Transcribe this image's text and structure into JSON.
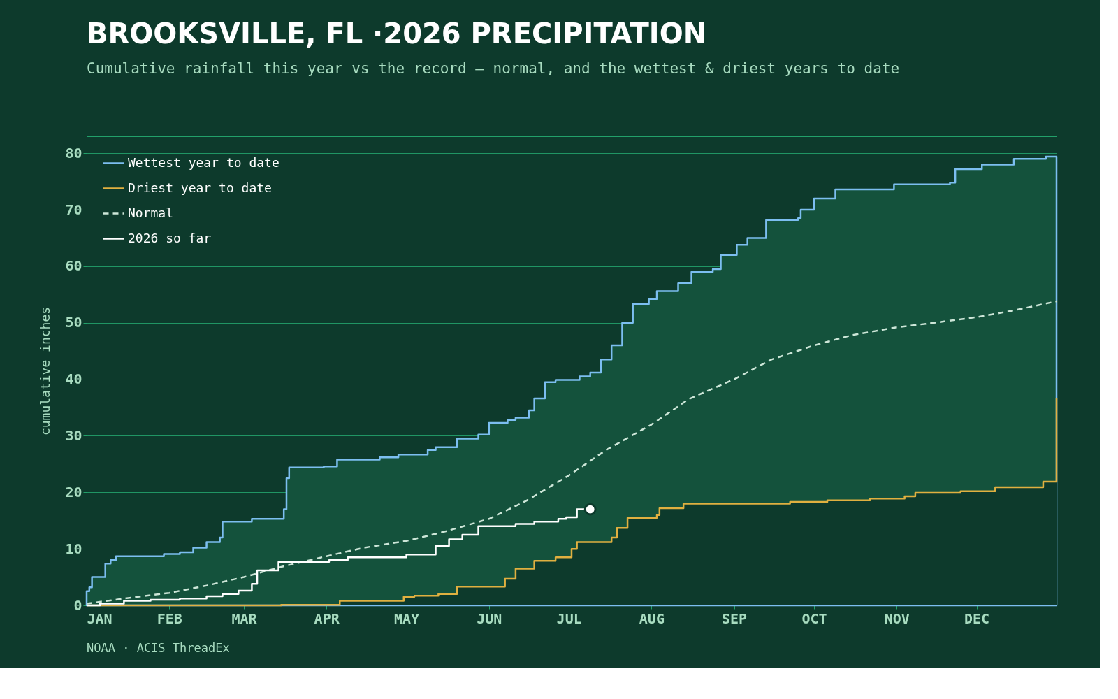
{
  "chart_data": {
    "type": "step",
    "title": "BROOKSVILLE, FL ·2026 PRECIPITATION",
    "subtitle": "Cumulative rainfall this year vs the record — normal, and the wettest & driest years to date",
    "ylabel": "cumulative inches",
    "annotations": [
      "NOAA · ACIS ThreadEx"
    ],
    "xlim": [
      "2026-01-01",
      "2026-12-31"
    ],
    "xticks": [
      {
        "value": "2026-01-01",
        "label": "JAN"
      },
      {
        "value": "2026-02-01",
        "label": "FEB"
      },
      {
        "value": "2026-03-01",
        "label": "MAR"
      },
      {
        "value": "2026-04-01",
        "label": "APR"
      },
      {
        "value": "2026-05-01",
        "label": "MAY"
      },
      {
        "value": "2026-06-01",
        "label": "JUN"
      },
      {
        "value": "2026-07-01",
        "label": "JUL"
      },
      {
        "value": "2026-08-01",
        "label": "AUG"
      },
      {
        "value": "2026-09-01",
        "label": "SEP"
      },
      {
        "value": "2026-10-01",
        "label": "OCT"
      },
      {
        "value": "2026-11-01",
        "label": "NOV"
      },
      {
        "value": "2026-12-01",
        "label": "DEC"
      }
    ],
    "ylim": [
      0,
      83
    ],
    "yticks": [
      0,
      10,
      20,
      30,
      40,
      50,
      60,
      70,
      80
    ],
    "grid": "y",
    "legend": "top left",
    "series": [
      {
        "name": "Wettest year to date",
        "color": "#7cbef0",
        "type": "area",
        "x": [
          "2026-01-01",
          "2026-01-02",
          "2026-01-03",
          "2026-01-08",
          "2026-01-10",
          "2026-01-12",
          "2026-01-30",
          "2026-02-05",
          "2026-02-10",
          "2026-02-15",
          "2026-02-20",
          "2026-02-21",
          "2026-03-04",
          "2026-03-16",
          "2026-03-17",
          "2026-03-18",
          "2026-03-31",
          "2026-04-05",
          "2026-04-21",
          "2026-04-28",
          "2026-05-09",
          "2026-05-12",
          "2026-05-20",
          "2026-05-28",
          "2026-06-01",
          "2026-06-08",
          "2026-06-11",
          "2026-06-16",
          "2026-06-18",
          "2026-06-22",
          "2026-06-26",
          "2026-07-05",
          "2026-07-09",
          "2026-07-13",
          "2026-07-17",
          "2026-07-21",
          "2026-07-25",
          "2026-07-31",
          "2026-08-03",
          "2026-08-11",
          "2026-08-16",
          "2026-08-24",
          "2026-08-27",
          "2026-09-02",
          "2026-09-06",
          "2026-09-13",
          "2026-09-25",
          "2026-09-26",
          "2026-10-01",
          "2026-10-09",
          "2026-10-31",
          "2026-11-21",
          "2026-11-23",
          "2026-12-03",
          "2026-12-15",
          "2026-12-27",
          "2026-12-31"
        ],
        "values": [
          2.5,
          3.2,
          5.0,
          7.4,
          8.0,
          8.7,
          9.1,
          9.4,
          10.2,
          11.2,
          12.0,
          14.8,
          15.3,
          17.0,
          22.5,
          24.4,
          24.6,
          25.8,
          26.2,
          26.7,
          27.5,
          28.0,
          29.5,
          30.2,
          32.3,
          32.8,
          33.2,
          34.5,
          36.6,
          39.5,
          39.9,
          40.5,
          41.2,
          43.5,
          46,
          50,
          53.3,
          54.2,
          55.6,
          57,
          59,
          59.5,
          62,
          63.8,
          65,
          68.2,
          68.5,
          70,
          72,
          73.6,
          74.5,
          74.8,
          77.2,
          78,
          79,
          79.4,
          79.4
        ]
      },
      {
        "name": "Driest year to date",
        "color": "#e0b040",
        "x": [
          "2026-01-01",
          "2026-03-15",
          "2026-04-06",
          "2026-04-30",
          "2026-05-04",
          "2026-05-13",
          "2026-05-20",
          "2026-06-07",
          "2026-06-11",
          "2026-06-18",
          "2026-06-26",
          "2026-07-02",
          "2026-07-04",
          "2026-07-17",
          "2026-07-19",
          "2026-07-23",
          "2026-08-03",
          "2026-08-04",
          "2026-08-13",
          "2026-09-22",
          "2026-10-06",
          "2026-10-22",
          "2026-11-04",
          "2026-11-08",
          "2026-11-25",
          "2026-12-08",
          "2026-12-26",
          "2026-12-31"
        ],
        "values": [
          0,
          0.1,
          0.8,
          1.5,
          1.7,
          2.0,
          3.3,
          4.7,
          6.5,
          7.9,
          8.5,
          10,
          11.2,
          12,
          13.7,
          15.5,
          16,
          17.2,
          18.0,
          18.3,
          18.6,
          18.9,
          19.3,
          19.9,
          20.2,
          20.9,
          21.9,
          36.7
        ]
      },
      {
        "name": "Normal",
        "color": "#cde6d8",
        "type": "line",
        "line_style": "dashed",
        "x": [
          "2026-01-01",
          "2026-01-15",
          "2026-02-01",
          "2026-02-15",
          "2026-03-01",
          "2026-03-15",
          "2026-04-01",
          "2026-04-15",
          "2026-05-01",
          "2026-05-15",
          "2026-06-01",
          "2026-06-15",
          "2026-07-01",
          "2026-07-15",
          "2026-08-01",
          "2026-08-15",
          "2026-09-01",
          "2026-09-15",
          "2026-10-01",
          "2026-10-15",
          "2026-11-01",
          "2026-11-15",
          "2026-12-01",
          "2026-12-15",
          "2026-12-31"
        ],
        "values": [
          0.3,
          1.2,
          2.2,
          3.5,
          5,
          6.8,
          8.7,
          10.2,
          11.4,
          13,
          15.3,
          18.5,
          23,
          27.5,
          32,
          36.5,
          40,
          43.5,
          46,
          47.8,
          49.2,
          50,
          51,
          52.2,
          53.8
        ]
      },
      {
        "name": "2026 so far",
        "color": "#ffffff",
        "x": [
          "2026-01-01",
          "2026-01-06",
          "2026-01-15",
          "2026-01-25",
          "2026-02-05",
          "2026-02-15",
          "2026-02-21",
          "2026-02-27",
          "2026-03-04",
          "2026-03-06",
          "2026-03-14",
          "2026-04-02",
          "2026-04-09",
          "2026-05-01",
          "2026-05-12",
          "2026-05-17",
          "2026-05-22",
          "2026-05-28",
          "2026-06-11",
          "2026-06-18",
          "2026-06-27",
          "2026-06-30",
          "2026-07-04",
          "2026-07-09"
        ],
        "values": [
          0,
          0.3,
          0.8,
          1.0,
          1.2,
          1.6,
          2.0,
          2.6,
          3.8,
          6.2,
          7.7,
          8.0,
          8.5,
          9.0,
          10.5,
          11.7,
          12.5,
          14.0,
          14.4,
          14.8,
          15.3,
          15.6,
          17.0,
          17.0
        ]
      },
      {
        "type": "scatter",
        "color": "#ffffff",
        "marker": "circle",
        "x": [
          "2026-07-09"
        ],
        "values": [
          17.0
        ]
      }
    ]
  }
}
